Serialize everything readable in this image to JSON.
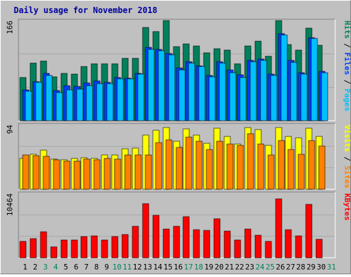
{
  "title": "Daily usage for November 2018",
  "colors": {
    "background": "#c0c0c0",
    "title": "#0000a0",
    "hits": "#00805c",
    "files": "#0040ff",
    "pages": "#00c0ff",
    "visits": "#ffff00",
    "sites": "#ff8000",
    "kbytes": "#ff0000",
    "weekend_label": "#00805c",
    "weekday_label": "#000000"
  },
  "panel_labels": {
    "hits_files_pages": [
      {
        "text": "Hits",
        "color": "#00805c"
      },
      {
        "text": " / ",
        "color": "#000000"
      },
      {
        "text": "Files",
        "color": "#0040ff"
      },
      {
        "text": " / ",
        "color": "#000000"
      },
      {
        "text": "Pages",
        "color": "#00c0ff"
      }
    ],
    "visits_sites": [
      {
        "text": "Visits",
        "color": "#ffff00"
      },
      {
        "text": " / ",
        "color": "#000000"
      },
      {
        "text": "Sites",
        "color": "#ff8000"
      }
    ],
    "kbytes": [
      {
        "text": "KBytes",
        "color": "#ff0000"
      }
    ]
  },
  "chart_data": {
    "type": "bar",
    "title": "Daily usage for November 2018",
    "categories": [
      "1",
      "2",
      "3",
      "4",
      "5",
      "6",
      "7",
      "8",
      "9",
      "10",
      "11",
      "12",
      "13",
      "14",
      "15",
      "16",
      "17",
      "18",
      "19",
      "20",
      "21",
      "22",
      "23",
      "24",
      "25",
      "26",
      "27",
      "28",
      "29",
      "30",
      "31"
    ],
    "weekend_days": [
      "3",
      "4",
      "10",
      "11",
      "17",
      "18",
      "24",
      "25",
      "31"
    ],
    "panels": [
      {
        "name": "hits_files_pages",
        "ymax_label": "166",
        "ymax": 166,
        "series": [
          {
            "name": "Hits",
            "values": [
              72,
              95,
              99,
              73,
              79,
              77,
              90,
              94,
              94,
              94,
              104,
              104,
              155,
              148,
              166,
              123,
              127,
              124,
              113,
              119,
              117,
              94,
              124,
              132,
              107,
              166,
              126,
              117,
              154,
              125,
              0
            ]
          },
          {
            "name": "Files",
            "values": [
              51,
              65,
              78,
              50,
              58,
              57,
              62,
              66,
              64,
              72,
              71,
              78,
              122,
              118,
              111,
              87,
              98,
              91,
              75,
              98,
              84,
              76,
              100,
              102,
              77,
              144,
              100,
              80,
              138,
              82,
              0
            ]
          },
          {
            "name": "Pages",
            "values": [
              49,
              64,
              75,
              47,
              51,
              52,
              58,
              61,
              61,
              69,
              69,
              77,
              118,
              116,
              109,
              84,
              96,
              90,
              73,
              96,
              80,
              72,
              98,
              100,
              75,
              142,
              97,
              77,
              136,
              80,
              0
            ]
          }
        ]
      },
      {
        "name": "visits_sites",
        "ymax_label": "94",
        "ymax": 94,
        "series": [
          {
            "name": "Visits",
            "values": [
              45,
              51,
              57,
              44,
              43,
              45,
              46,
              45,
              50,
              50,
              59,
              60,
              79,
              86,
              90,
              70,
              88,
              79,
              67,
              89,
              77,
              66,
              90,
              87,
              64,
              90,
              77,
              75,
              89,
              77,
              0
            ]
          },
          {
            "name": "Sites",
            "values": [
              50,
              49,
              48,
              43,
              41,
              41,
              44,
              43,
              45,
              44,
              50,
              50,
              50,
              68,
              72,
              61,
              76,
              70,
              58,
              70,
              66,
              64,
              81,
              66,
              50,
              71,
              58,
              51,
              71,
              63,
              0
            ]
          }
        ]
      },
      {
        "name": "kbytes",
        "ymax_label": "10464",
        "ymax": 10464,
        "series": [
          {
            "name": "KBytes",
            "values": [
              2700,
              3100,
              4200,
              1800,
              2900,
              2900,
              3400,
              3600,
              2900,
              3500,
              3800,
              5100,
              8800,
              6900,
              4700,
              5100,
              6700,
              4600,
              4500,
              6300,
              4300,
              2900,
              4700,
              3700,
              2700,
              9600,
              4600,
              3600,
              8700,
              3000,
              0
            ]
          }
        ]
      }
    ]
  }
}
